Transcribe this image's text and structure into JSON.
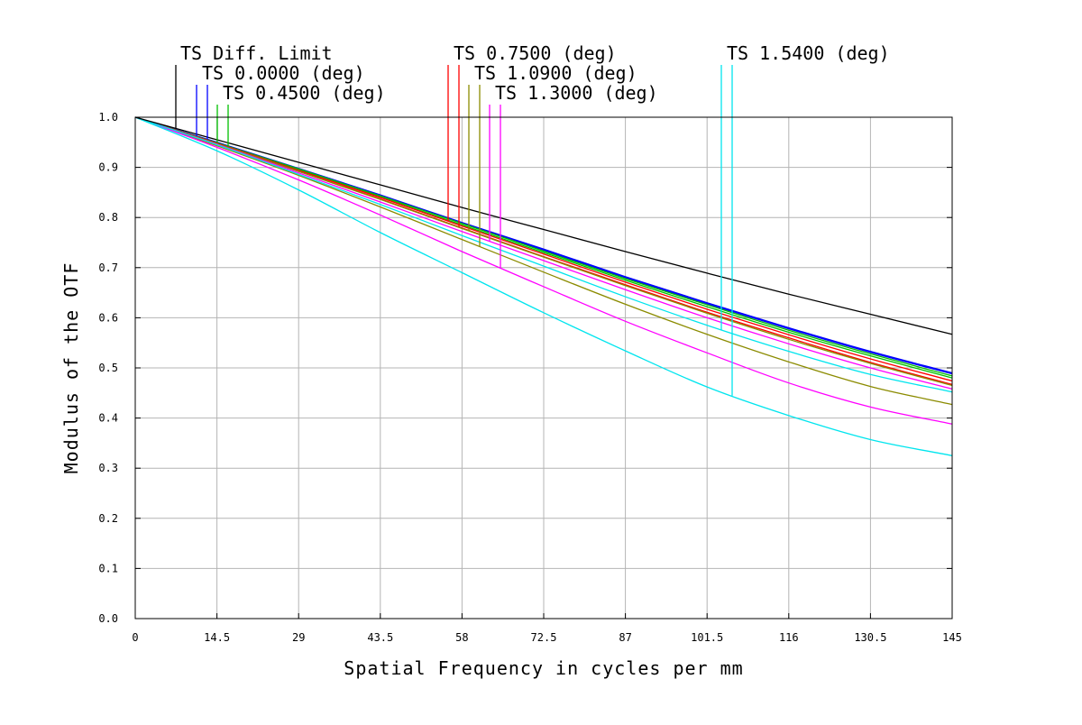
{
  "chart_data": {
    "type": "line",
    "xlabel": "Spatial Frequency in cycles per mm",
    "ylabel": "Modulus of the OTF",
    "xlim": [
      0,
      145
    ],
    "ylim": [
      0,
      1
    ],
    "x_ticks": [
      "0",
      "14.5",
      "29",
      "43.5",
      "58",
      "72.5",
      "87",
      "101.5",
      "116",
      "130.5",
      "145"
    ],
    "y_ticks": [
      "0.0",
      "0.1",
      "0.2",
      "0.3",
      "0.4",
      "0.5",
      "0.6",
      "0.7",
      "0.8",
      "0.9",
      "1.0"
    ],
    "grid": true,
    "x": [
      0,
      14.5,
      29,
      43.5,
      58,
      72.5,
      87,
      101.5,
      116,
      130.5,
      145
    ],
    "series": [
      {
        "name": "TS Diff. Limit",
        "color": "#000000",
        "curves": [
          [
            1.0,
            0.955,
            0.91,
            0.865,
            0.82,
            0.776,
            0.732,
            0.689,
            0.647,
            0.607,
            0.567
          ]
        ]
      },
      {
        "name": "TS 0.0000 (deg)",
        "color": "#0000ff",
        "curves": [
          [
            1.0,
            0.95,
            0.898,
            0.845,
            0.79,
            0.737,
            0.682,
            0.63,
            0.58,
            0.533,
            0.49
          ],
          [
            1.0,
            0.95,
            0.897,
            0.844,
            0.789,
            0.735,
            0.68,
            0.628,
            0.578,
            0.531,
            0.488
          ]
        ]
      },
      {
        "name": "TS 0.4500 (deg)",
        "color": "#00c000",
        "curves": [
          [
            1.0,
            0.949,
            0.897,
            0.843,
            0.788,
            0.733,
            0.678,
            0.626,
            0.575,
            0.528,
            0.484
          ],
          [
            1.0,
            0.948,
            0.895,
            0.841,
            0.785,
            0.73,
            0.675,
            0.622,
            0.571,
            0.524,
            0.48
          ]
        ]
      },
      {
        "name": "TS 0.7500 (deg)",
        "color": "#ff0000",
        "curves": [
          [
            1.0,
            0.948,
            0.894,
            0.84,
            0.783,
            0.727,
            0.671,
            0.617,
            0.566,
            0.518,
            0.474
          ],
          [
            1.0,
            0.947,
            0.892,
            0.837,
            0.779,
            0.722,
            0.666,
            0.611,
            0.56,
            0.511,
            0.467
          ]
        ]
      },
      {
        "name": "TS 1.0900 (deg)",
        "color": "#8b8b00",
        "curves": [
          [
            1.0,
            0.947,
            0.892,
            0.836,
            0.778,
            0.721,
            0.664,
            0.609,
            0.557,
            0.509,
            0.465
          ],
          [
            1.0,
            0.943,
            0.884,
            0.821,
            0.756,
            0.691,
            0.627,
            0.567,
            0.512,
            0.463,
            0.427
          ]
        ]
      },
      {
        "name": "TS 1.3000 (deg)",
        "color": "#ff00ff",
        "curves": [
          [
            1.0,
            0.946,
            0.889,
            0.831,
            0.772,
            0.714,
            0.656,
            0.6,
            0.548,
            0.5,
            0.458
          ],
          [
            1.0,
            0.94,
            0.875,
            0.805,
            0.732,
            0.662,
            0.593,
            0.53,
            0.47,
            0.422,
            0.388
          ]
        ]
      },
      {
        "name": "TS 1.5400 (deg)",
        "color": "#00e5ee",
        "curves": [
          [
            1.0,
            0.945,
            0.886,
            0.826,
            0.764,
            0.703,
            0.642,
            0.585,
            0.533,
            0.487,
            0.452
          ],
          [
            1.0,
            0.933,
            0.855,
            0.77,
            0.69,
            0.61,
            0.534,
            0.462,
            0.405,
            0.357,
            0.325
          ]
        ]
      }
    ]
  }
}
